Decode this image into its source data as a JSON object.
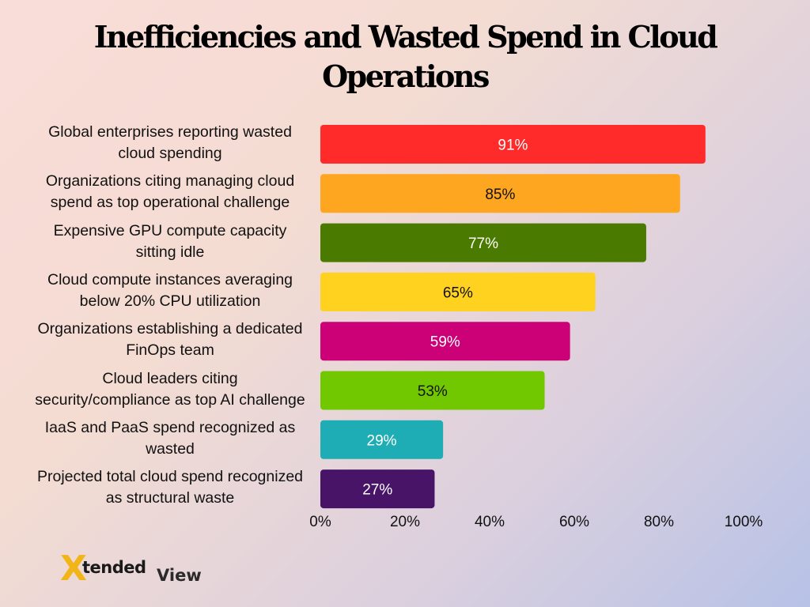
{
  "chart_data": {
    "type": "bar",
    "orientation": "horizontal",
    "title": "Inefficiencies and Wasted Spend in Cloud Operations",
    "categories": [
      "Global enterprises reporting wasted cloud spending",
      "Organizations citing managing cloud spend as top operational challenge",
      "Expensive GPU compute capacity sitting idle",
      "Cloud compute instances averaging below 20% CPU utilization",
      "Organizations establishing a dedicated FinOps team",
      "Cloud leaders citing security/compliance as top AI challenge",
      "IaaS and PaaS spend recognized as wasted",
      "Projected total cloud spend recognized as structural waste"
    ],
    "category_lines": [
      [
        "Global enterprises reporting wasted",
        "cloud spending"
      ],
      [
        "Organizations citing managing cloud",
        "spend as top operational challenge"
      ],
      [
        "Expensive GPU compute capacity",
        "sitting idle"
      ],
      [
        "Cloud compute instances averaging",
        "below 20% CPU utilization"
      ],
      [
        "Organizations establishing a dedicated",
        "FinOps team"
      ],
      [
        "Cloud leaders citing",
        "security/compliance as top AI challenge"
      ],
      [
        "IaaS and PaaS spend recognized as",
        "wasted"
      ],
      [
        "Projected total cloud spend recognized",
        "as structural waste"
      ]
    ],
    "values": [
      91,
      85,
      77,
      65,
      59,
      53,
      29,
      27
    ],
    "data_labels": [
      "91%",
      "85%",
      "77%",
      "65%",
      "59%",
      "53%",
      "29%",
      "27%"
    ],
    "colors": [
      "#ff2b2b",
      "#ffa620",
      "#4a7a00",
      "#ffd21f",
      "#cc0077",
      "#72c800",
      "#1eadb4",
      "#471467"
    ],
    "label_colors": [
      "#ffffff",
      "#111111",
      "#ffffff",
      "#111111",
      "#ffffff",
      "#111111",
      "#ffffff",
      "#ffffff"
    ],
    "xlim": [
      0,
      100
    ],
    "xticks": [
      "0%",
      "20%",
      "40%",
      "60%",
      "80%",
      "100%"
    ],
    "xtick_values": [
      0,
      20,
      40,
      60,
      80,
      100
    ],
    "xlabel": "",
    "ylabel": "",
    "grid": false,
    "legend": "none"
  },
  "logo": {
    "x_mark": "X",
    "wordmark": "tended",
    "suffix": "View",
    "colors": {
      "x_purple": "#5a2a8c",
      "x_yellow": "#f2b518"
    }
  }
}
